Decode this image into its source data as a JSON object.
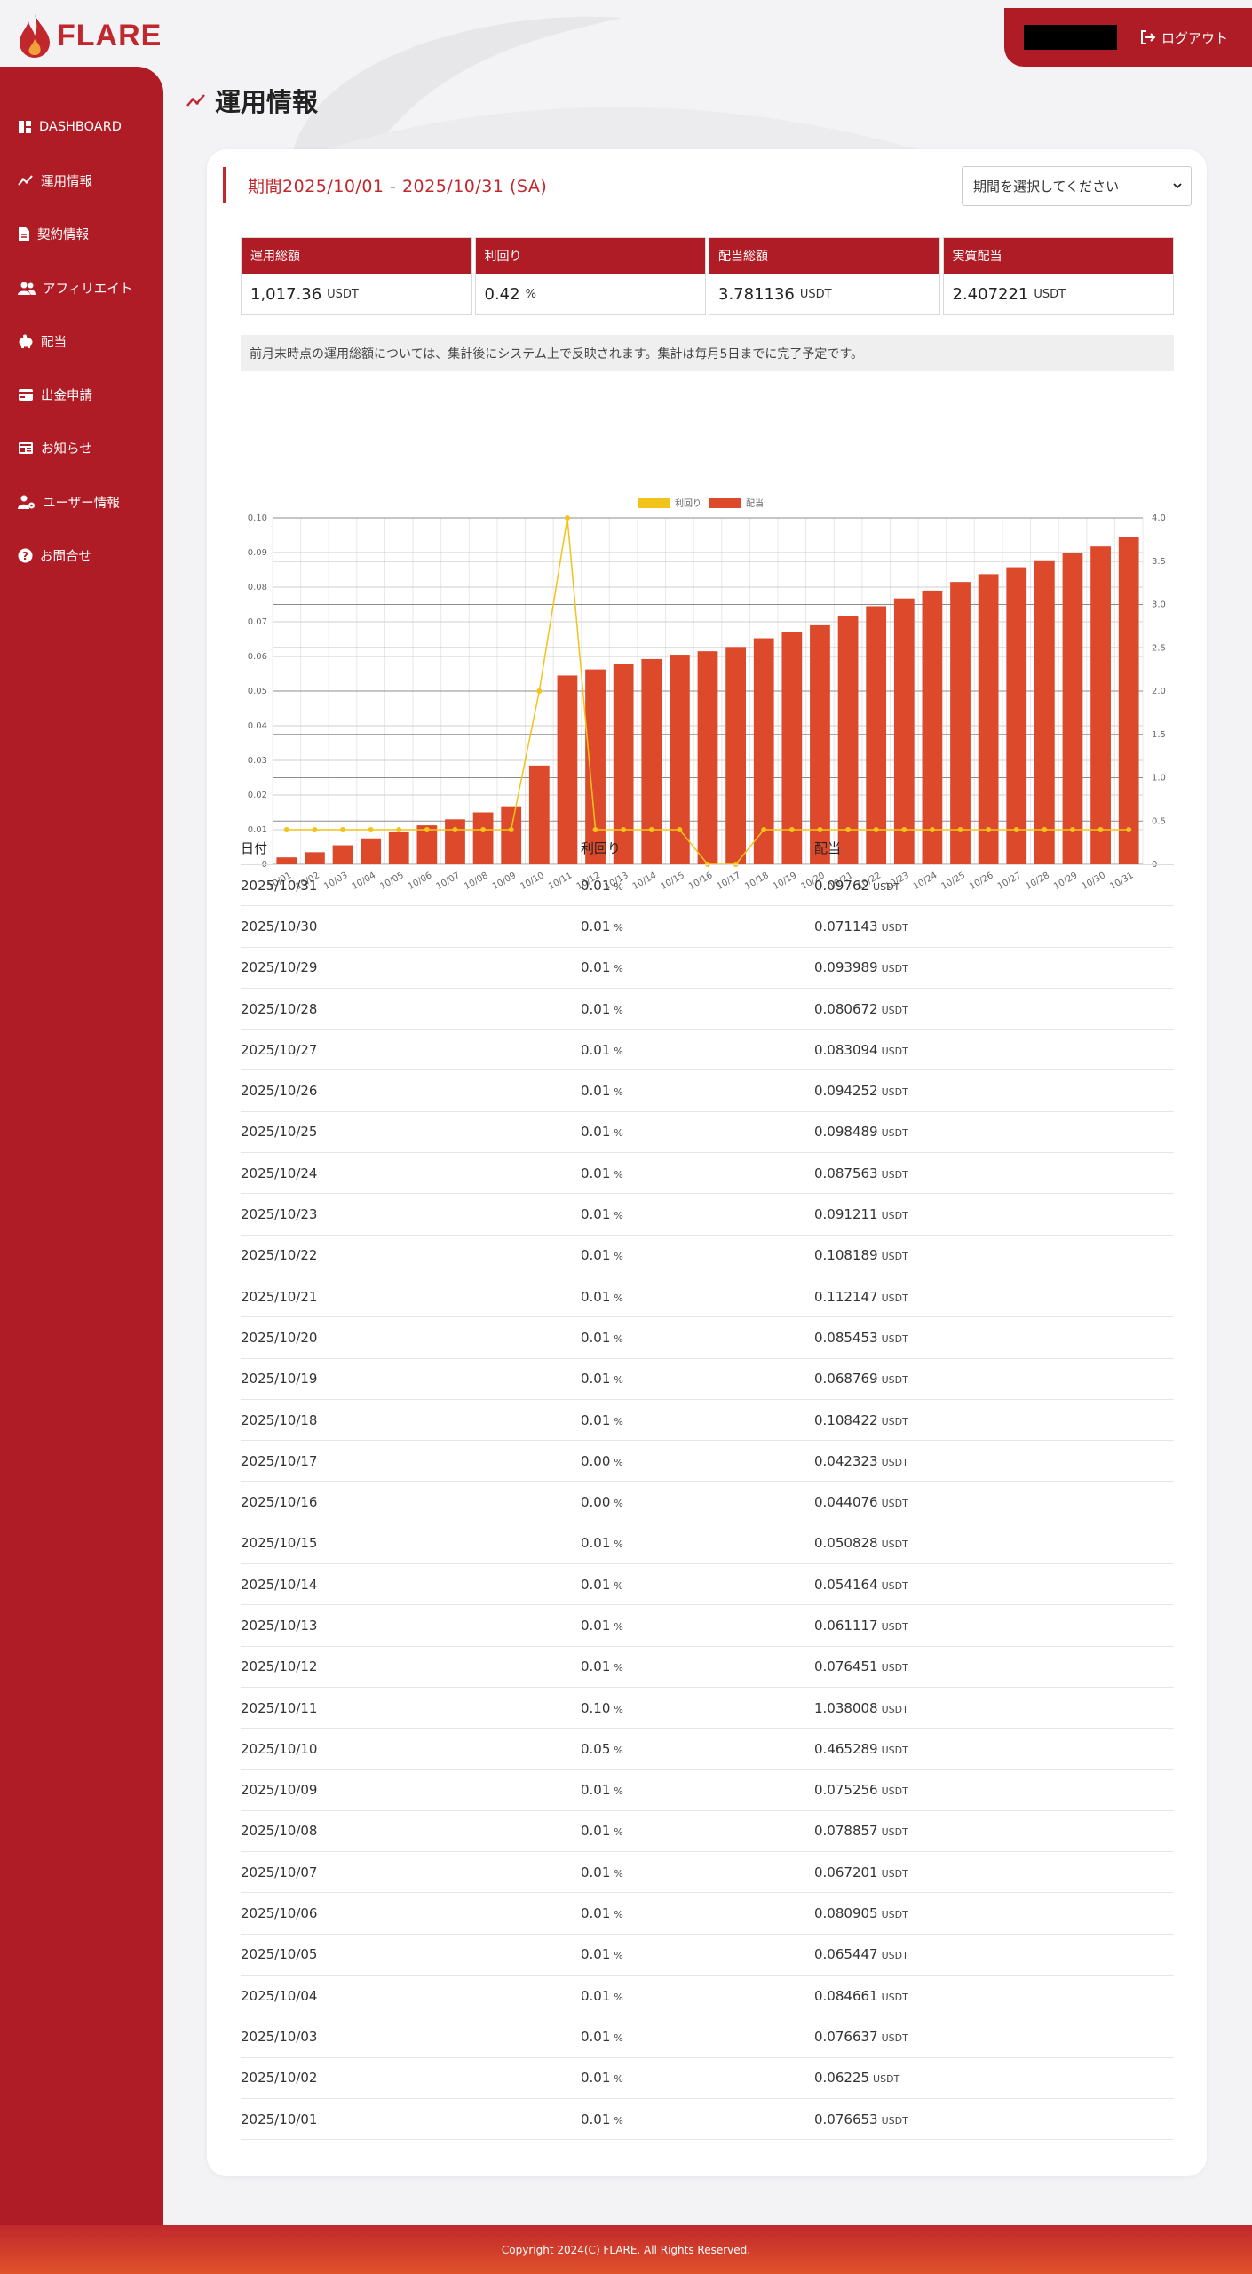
{
  "app": {
    "logo_text": "FLARE",
    "logout_label": "ログアウト"
  },
  "sidebar": {
    "items": [
      {
        "label": "DASHBOARD",
        "icon": "dashboard-icon"
      },
      {
        "label": "運用情報",
        "icon": "chart-line-icon"
      },
      {
        "label": "契約情報",
        "icon": "document-icon"
      },
      {
        "label": "アフィリエイト",
        "icon": "users-icon"
      },
      {
        "label": "配当",
        "icon": "piggy-bank-icon"
      },
      {
        "label": "出金申請",
        "icon": "wallet-icon"
      },
      {
        "label": "お知らせ",
        "icon": "news-icon"
      },
      {
        "label": "ユーザー情報",
        "icon": "user-gear-icon"
      },
      {
        "label": "お問合せ",
        "icon": "question-icon"
      }
    ]
  },
  "page": {
    "title": "運用情報"
  },
  "period": {
    "label": "期間2025/10/01 - 2025/10/31 (SA)",
    "select_placeholder": "期間を選択してください"
  },
  "stats": [
    {
      "label": "運用総額",
      "value": "1,017.36",
      "unit": "USDT"
    },
    {
      "label": "利回り",
      "value": "0.42",
      "unit": "%"
    },
    {
      "label": "配当総額",
      "value": "3.781136",
      "unit": "USDT"
    },
    {
      "label": "実質配当",
      "value": "2.407221",
      "unit": "USDT"
    }
  ],
  "notice": "前月末時点の運用総額については、集計後にシステム上で反映されます。集計は毎月5日までに完了予定です。",
  "chart_data": {
    "type": "bar",
    "categories": [
      "10/01",
      "10/02",
      "10/03",
      "10/04",
      "10/05",
      "10/06",
      "10/07",
      "10/08",
      "10/09",
      "10/10",
      "10/11",
      "10/12",
      "10/13",
      "10/14",
      "10/15",
      "10/16",
      "10/17",
      "10/18",
      "10/19",
      "10/20",
      "10/21",
      "10/22",
      "10/23",
      "10/24",
      "10/25",
      "10/26",
      "10/27",
      "10/28",
      "10/29",
      "10/30",
      "10/31"
    ],
    "series": [
      {
        "name": "利回り",
        "type": "line",
        "axis": "left",
        "color": "#f2c318",
        "values": [
          0.01,
          0.01,
          0.01,
          0.01,
          0.01,
          0.01,
          0.01,
          0.01,
          0.01,
          0.05,
          0.1,
          0.01,
          0.01,
          0.01,
          0.01,
          0.0,
          0.0,
          0.01,
          0.01,
          0.01,
          0.01,
          0.01,
          0.01,
          0.01,
          0.01,
          0.01,
          0.01,
          0.01,
          0.01,
          0.01,
          0.01
        ]
      },
      {
        "name": "配当",
        "type": "bar",
        "axis": "right",
        "color": "#dc4a2b",
        "values": [
          0.08,
          0.14,
          0.22,
          0.3,
          0.37,
          0.45,
          0.52,
          0.6,
          0.67,
          1.14,
          2.18,
          2.25,
          2.31,
          2.37,
          2.42,
          2.46,
          2.51,
          2.61,
          2.68,
          2.76,
          2.87,
          2.98,
          3.07,
          3.16,
          3.26,
          3.35,
          3.43,
          3.51,
          3.6,
          3.67,
          3.78
        ]
      }
    ],
    "y_left": {
      "ylim": [
        0,
        0.1
      ],
      "ticks": [
        "0",
        "0.01",
        "0.02",
        "0.03",
        "0.04",
        "0.05",
        "0.06",
        "0.07",
        "0.08",
        "0.09",
        "0.10"
      ]
    },
    "y_right": {
      "ylim": [
        0,
        4.0
      ],
      "ticks": [
        "0",
        "0.5",
        "1.0",
        "1.5",
        "2.0",
        "2.5",
        "3.0",
        "3.5",
        "4.0"
      ]
    },
    "legend": "top-center",
    "grid": true
  },
  "table": {
    "headers": [
      "日付",
      "利回り",
      "配当"
    ],
    "pct_unit": "%",
    "usdt_unit": "USDT",
    "rows": [
      {
        "date": "2025/10/31",
        "rate": "0.01",
        "div": "0.09762"
      },
      {
        "date": "2025/10/30",
        "rate": "0.01",
        "div": "0.071143"
      },
      {
        "date": "2025/10/29",
        "rate": "0.01",
        "div": "0.093989"
      },
      {
        "date": "2025/10/28",
        "rate": "0.01",
        "div": "0.080672"
      },
      {
        "date": "2025/10/27",
        "rate": "0.01",
        "div": "0.083094"
      },
      {
        "date": "2025/10/26",
        "rate": "0.01",
        "div": "0.094252"
      },
      {
        "date": "2025/10/25",
        "rate": "0.01",
        "div": "0.098489"
      },
      {
        "date": "2025/10/24",
        "rate": "0.01",
        "div": "0.087563"
      },
      {
        "date": "2025/10/23",
        "rate": "0.01",
        "div": "0.091211"
      },
      {
        "date": "2025/10/22",
        "rate": "0.01",
        "div": "0.108189"
      },
      {
        "date": "2025/10/21",
        "rate": "0.01",
        "div": "0.112147"
      },
      {
        "date": "2025/10/20",
        "rate": "0.01",
        "div": "0.085453"
      },
      {
        "date": "2025/10/19",
        "rate": "0.01",
        "div": "0.068769"
      },
      {
        "date": "2025/10/18",
        "rate": "0.01",
        "div": "0.108422"
      },
      {
        "date": "2025/10/17",
        "rate": "0.00",
        "div": "0.042323"
      },
      {
        "date": "2025/10/16",
        "rate": "0.00",
        "div": "0.044076"
      },
      {
        "date": "2025/10/15",
        "rate": "0.01",
        "div": "0.050828"
      },
      {
        "date": "2025/10/14",
        "rate": "0.01",
        "div": "0.054164"
      },
      {
        "date": "2025/10/13",
        "rate": "0.01",
        "div": "0.061117"
      },
      {
        "date": "2025/10/12",
        "rate": "0.01",
        "div": "0.076451"
      },
      {
        "date": "2025/10/11",
        "rate": "0.10",
        "div": "1.038008"
      },
      {
        "date": "2025/10/10",
        "rate": "0.05",
        "div": "0.465289"
      },
      {
        "date": "2025/10/09",
        "rate": "0.01",
        "div": "0.075256"
      },
      {
        "date": "2025/10/08",
        "rate": "0.01",
        "div": "0.078857"
      },
      {
        "date": "2025/10/07",
        "rate": "0.01",
        "div": "0.067201"
      },
      {
        "date": "2025/10/06",
        "rate": "0.01",
        "div": "0.080905"
      },
      {
        "date": "2025/10/05",
        "rate": "0.01",
        "div": "0.065447"
      },
      {
        "date": "2025/10/04",
        "rate": "0.01",
        "div": "0.084661"
      },
      {
        "date": "2025/10/03",
        "rate": "0.01",
        "div": "0.076637"
      },
      {
        "date": "2025/10/02",
        "rate": "0.01",
        "div": "0.06225"
      },
      {
        "date": "2025/10/01",
        "rate": "0.01",
        "div": "0.076653"
      }
    ]
  },
  "footer": {
    "copyright": "Copyright 2024(C) FLARE. All Rights Reserved."
  },
  "colors": {
    "brand": "#b01c25",
    "bar": "#dc4a2b",
    "line": "#f2c318"
  }
}
